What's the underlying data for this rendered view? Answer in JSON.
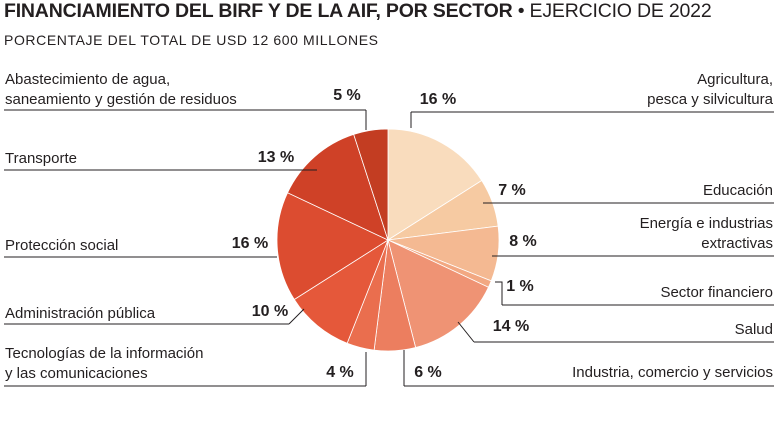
{
  "header": {
    "title_bold": "FINANCIAMIENTO DEL BIRF Y DE LA AIF, POR SECTOR",
    "title_sep": " • ",
    "title_regular": "EJERCICIO DE 2022",
    "subtitle": "PORCENTAJE DEL TOTAL DE USD 12 600 MILLONES"
  },
  "chart_data": {
    "type": "pie",
    "title": "FINANCIAMIENTO DEL BIRF Y DE LA AIF, POR SECTOR • EJERCICIO DE 2022",
    "subtitle": "PORCENTAJE DEL TOTAL DE USD 12 600 MILLONES",
    "unit": "%",
    "total": "USD 12 600 MILLONES",
    "slices": [
      {
        "id": "agricultura",
        "label_lines": [
          "Agricultura,",
          "pesca y silvicultura"
        ],
        "value": 16,
        "pct_label": "16 %",
        "color": "#f9dcbd"
      },
      {
        "id": "educacion",
        "label_lines": [
          "Educación"
        ],
        "value": 7,
        "pct_label": "7 %",
        "color": "#f6caa2"
      },
      {
        "id": "energia",
        "label_lines": [
          "Energía e industrias",
          "extractivas"
        ],
        "value": 8,
        "pct_label": "8 %",
        "color": "#f4b992"
      },
      {
        "id": "financiero",
        "label_lines": [
          "Sector financiero"
        ],
        "value": 1,
        "pct_label": "1 %",
        "color": "#f2a882"
      },
      {
        "id": "salud",
        "label_lines": [
          "Salud"
        ],
        "value": 14,
        "pct_label": "14 %",
        "color": "#ef9374"
      },
      {
        "id": "industria",
        "label_lines": [
          "Industria, comercio y servicios"
        ],
        "value": 6,
        "pct_label": "6 %",
        "color": "#ec7e5f"
      },
      {
        "id": "tic",
        "label_lines": [
          "Tecnologías de la información",
          "y las comunicaciones"
        ],
        "value": 4,
        "pct_label": "4 %",
        "color": "#ea6e4e"
      },
      {
        "id": "administracion",
        "label_lines": [
          "Administración pública"
        ],
        "value": 10,
        "pct_label": "10 %",
        "color": "#e5583a"
      },
      {
        "id": "proteccion",
        "label_lines": [
          "Protección social"
        ],
        "value": 16,
        "pct_label": "16 %",
        "color": "#dc4c30"
      },
      {
        "id": "transporte",
        "label_lines": [
          "Transporte"
        ],
        "value": 13,
        "pct_label": "13 %",
        "color": "#cf4127"
      },
      {
        "id": "agua",
        "label_lines": [
          "Abastecimiento de agua,",
          "saneamiento y gestión de residuos"
        ],
        "value": 5,
        "pct_label": "5 %",
        "color": "#c33d22"
      }
    ]
  }
}
